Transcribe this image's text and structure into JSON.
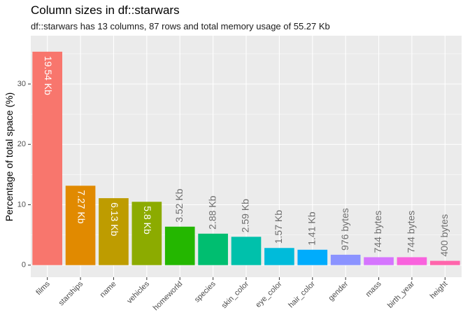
{
  "chart_data": {
    "type": "bar",
    "title": "Column sizes in df::starwars",
    "subtitle": "df::starwars has 13 columns, 87 rows and total memory usage of 55.27 Kb",
    "xlabel": "",
    "ylabel": "Percentage of total space (%)",
    "ylim": [
      -2,
      38
    ],
    "yticks": [
      0,
      10,
      20,
      30
    ],
    "grid": true,
    "legend": "none",
    "categories": [
      "films",
      "starships",
      "name",
      "vehicles",
      "homeworld",
      "species",
      "skin_color",
      "eye_color",
      "hair_color",
      "gender",
      "mass",
      "birth_year",
      "height"
    ],
    "values": [
      35.35,
      13.15,
      11.09,
      10.49,
      6.37,
      5.21,
      4.69,
      2.84,
      2.55,
      1.72,
      1.31,
      1.31,
      0.71
    ],
    "bar_labels": [
      "19.54 Kb",
      "7.27 Kb",
      "6.13 Kb",
      "5.8 Kb",
      "3.52 Kb",
      "2.88 Kb",
      "2.59 Kb",
      "1.57 Kb",
      "1.41 Kb",
      "976 bytes",
      "744 bytes",
      "744 bytes",
      "400 bytes"
    ],
    "colors": [
      "#F8766D",
      "#E18A00",
      "#BE9C00",
      "#8CAB00",
      "#24B700",
      "#00BE70",
      "#00C1AB",
      "#00BBDA",
      "#00ACFC",
      "#8B93FF",
      "#D575FE",
      "#F962DD",
      "#FF65AC"
    ],
    "label_inside_count": 4,
    "panel_background": "#EBEBEB",
    "grid_color": "#FFFFFF",
    "inside_label_color": "#FFFFFF",
    "outside_label_color": "#6E6E6E"
  }
}
